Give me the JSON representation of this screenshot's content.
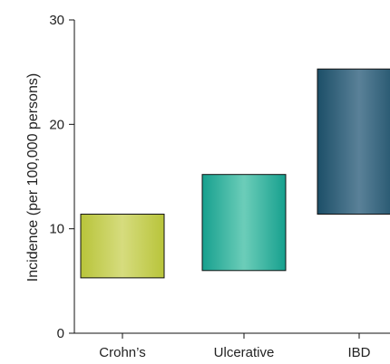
{
  "chart_data": {
    "type": "bar",
    "subtype": "floating-range",
    "categories": [
      "Crohn’s",
      "Ulcerative",
      "IBD"
    ],
    "ranges": [
      {
        "category": "Crohn’s",
        "low": 5.3,
        "high": 11.4
      },
      {
        "category": "Ulcerative",
        "low": 6.0,
        "high": 15.2
      },
      {
        "category": "IBD",
        "low": 11.4,
        "high": 25.3
      }
    ],
    "colors": {
      "Crohn’s": {
        "edge": "#b8c43a",
        "mid": "#d6dc7e"
      },
      "Ulcerative": {
        "edge": "#16a08e",
        "mid": "#6ccdb9"
      },
      "IBD": {
        "edge": "#1c4f68",
        "mid": "#5a8198"
      }
    },
    "ylabel": "Incidence (per 100,000 persons)",
    "xlabel": "",
    "title": "",
    "ylim": [
      0,
      30
    ],
    "yticks": [
      "0",
      "10",
      "20",
      "30"
    ],
    "grid": false,
    "legend": "none"
  }
}
